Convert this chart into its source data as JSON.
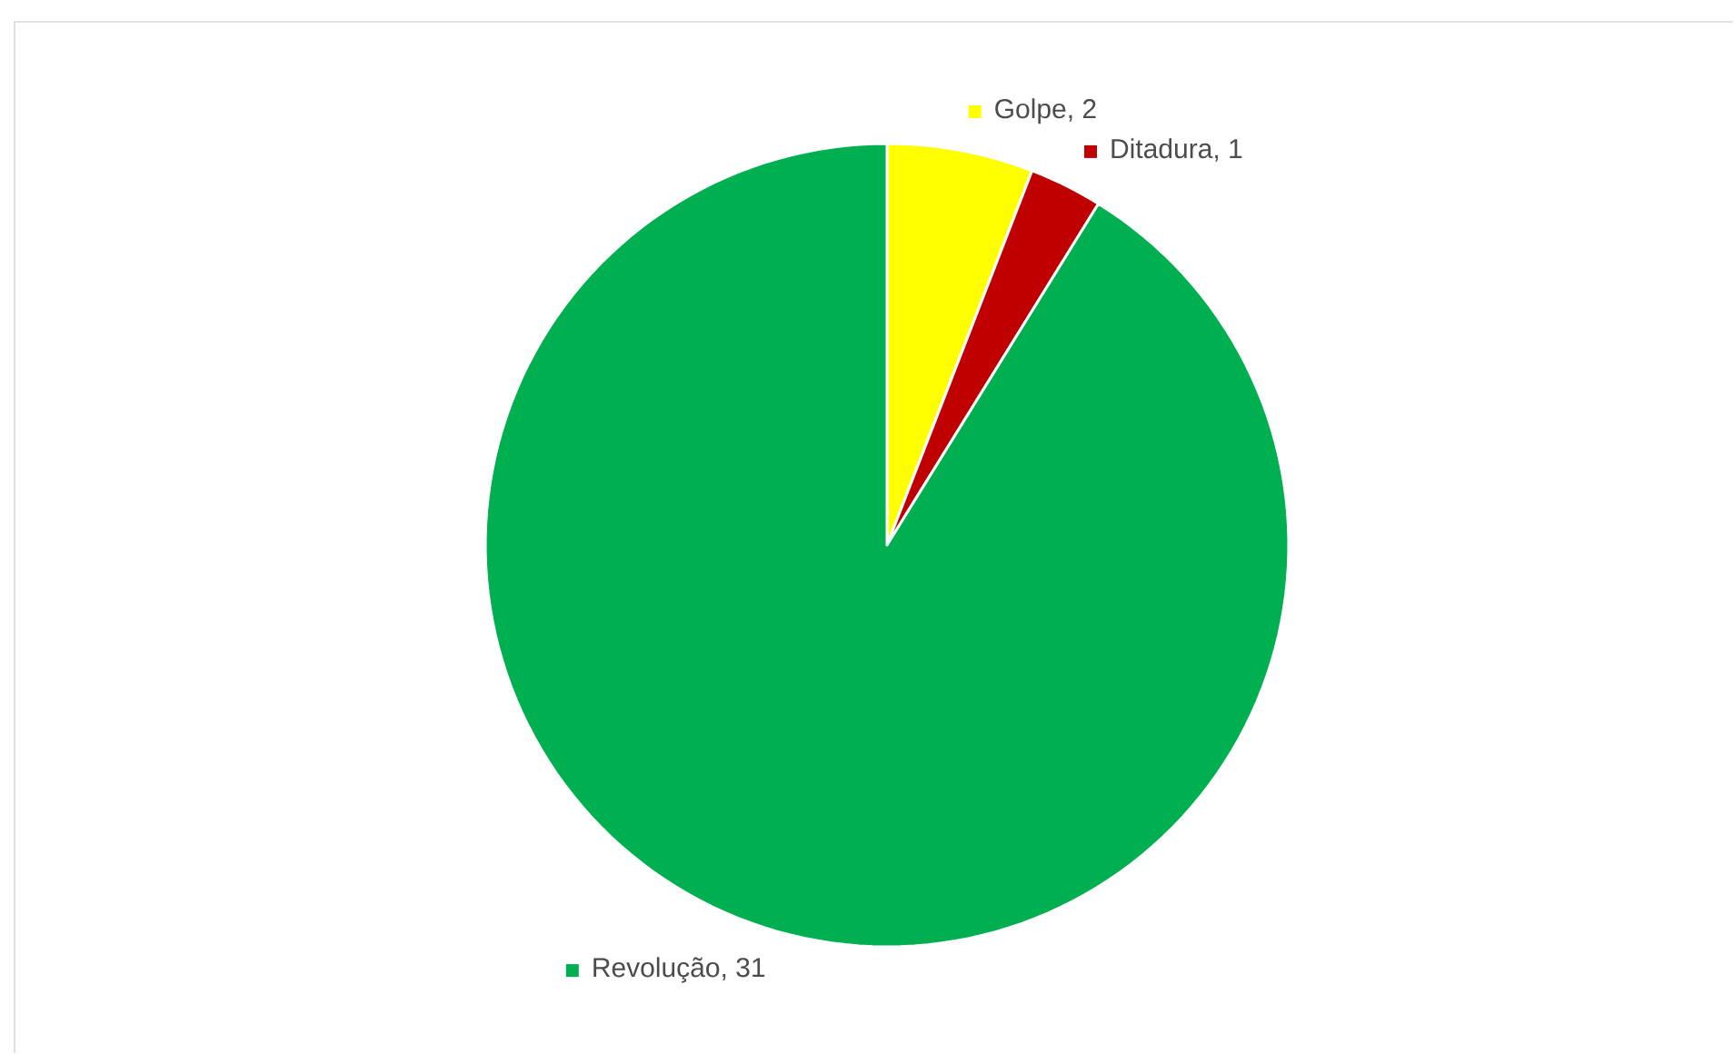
{
  "chart_data": {
    "type": "pie",
    "categories": [
      "Golpe",
      "Ditadura",
      "Revolução"
    ],
    "values": [
      2,
      1,
      31
    ],
    "value_labels": [
      ", 2",
      ", 1",
      ", 31"
    ],
    "colors": [
      "#ffff00",
      "#c00000",
      "#00b050"
    ],
    "legend": "top"
  }
}
